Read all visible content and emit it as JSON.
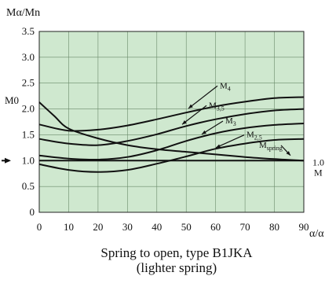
{
  "chart_data": {
    "type": "line",
    "ylabel": "Mα/Mn",
    "xlabel": "α/α",
    "xlim": [
      0,
      90
    ],
    "ylim": [
      0,
      3.5
    ],
    "xticks": [
      "0",
      "10",
      "20",
      "30",
      "40",
      "50",
      "60",
      "70",
      "80",
      "90"
    ],
    "yticks": [
      "0",
      "0.5",
      "1.0",
      "1.5",
      "2.0",
      "2.5",
      "3.0",
      "3.5"
    ],
    "grid": true,
    "background": "#cfe8cf",
    "right_label_line1": "1.0",
    "right_label_line2": "M",
    "m0_label": "M0",
    "series": [
      {
        "name": "M4",
        "x": [
          0,
          10,
          20,
          30,
          40,
          50,
          60,
          70,
          80,
          90
        ],
        "y": [
          1.7,
          1.58,
          1.6,
          1.68,
          1.8,
          1.93,
          2.05,
          2.14,
          2.21,
          2.23
        ]
      },
      {
        "name": "M3,5",
        "x": [
          0,
          10,
          20,
          30,
          40,
          50,
          60,
          70,
          80,
          90
        ],
        "y": [
          1.42,
          1.33,
          1.3,
          1.38,
          1.51,
          1.67,
          1.8,
          1.9,
          1.97,
          2.0
        ]
      },
      {
        "name": "M3",
        "x": [
          0,
          10,
          20,
          30,
          40,
          50,
          60,
          70,
          80,
          90
        ],
        "y": [
          1.1,
          1.04,
          1.02,
          1.07,
          1.2,
          1.38,
          1.53,
          1.63,
          1.69,
          1.72
        ]
      },
      {
        "name": "M2,5",
        "x": [
          0,
          10,
          20,
          30,
          40,
          50,
          60,
          70,
          80,
          90
        ],
        "y": [
          0.93,
          0.82,
          0.78,
          0.82,
          0.94,
          1.08,
          1.23,
          1.33,
          1.4,
          1.42
        ]
      },
      {
        "name": "Mspring",
        "x": [
          0,
          5,
          10,
          20,
          30,
          40,
          50,
          60,
          70,
          80,
          90
        ],
        "y": [
          2.13,
          1.87,
          1.62,
          1.43,
          1.3,
          1.22,
          1.17,
          1.12,
          1.07,
          1.03,
          1.0
        ]
      },
      {
        "name": "",
        "x": [
          0,
          10,
          20,
          30,
          40,
          50,
          60,
          70,
          80,
          90
        ],
        "y": [
          1.0,
          1.0,
          1.0,
          1.0,
          1.0,
          1.0,
          1.0,
          1.0,
          1.0,
          1.0
        ]
      }
    ]
  },
  "caption": {
    "line1": "Spring to open, type B1JKA",
    "line2": "(lighter spring)"
  }
}
